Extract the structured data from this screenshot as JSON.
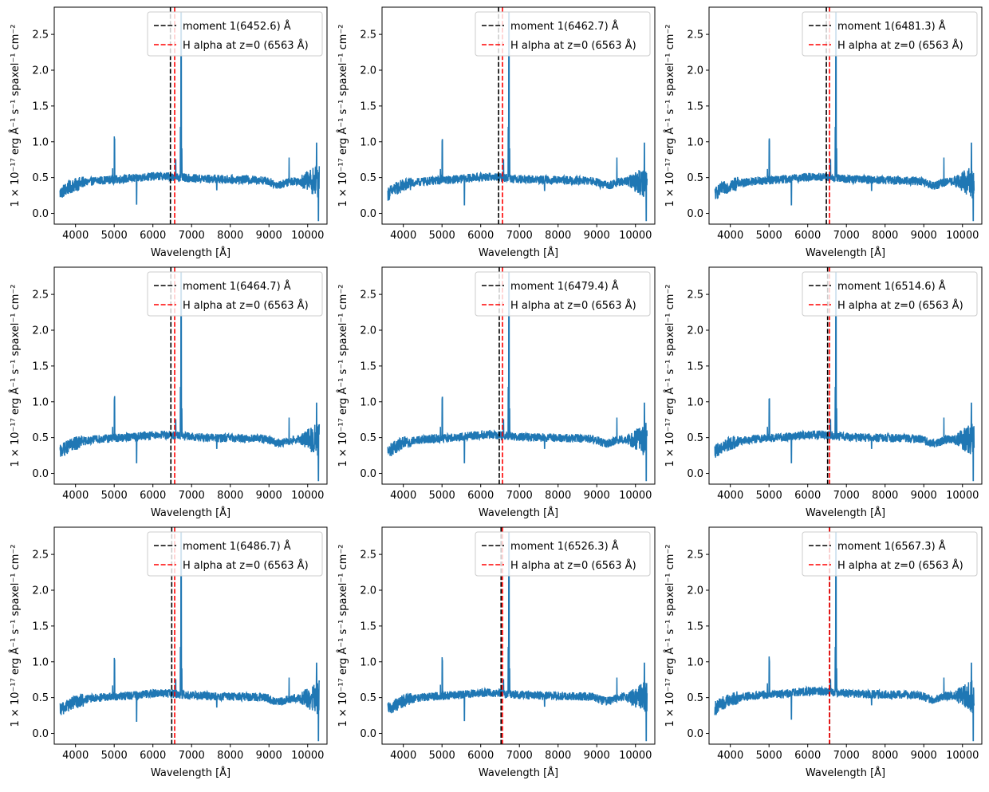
{
  "colors": {
    "spectrum": "#1f77b4",
    "moment_line": "#000000",
    "halpha_line": "#ff0000"
  },
  "chart_data": [
    {
      "type": "line",
      "moment_label": "moment 1(6452.6) Å",
      "moment_value": 6452.6,
      "halpha_label": "H alpha at z=0 (6563 Å)",
      "halpha_value": 6563,
      "xlabel": "Wavelength [Å]",
      "ylabel": "1 × 10⁻¹⁷ erg Å⁻¹ s⁻¹ spaxel⁻¹ cm⁻²",
      "xlim": [
        3450,
        10500
      ],
      "ylim": [
        -0.15,
        2.88
      ],
      "xticks": [
        4000,
        5000,
        6000,
        7000,
        8000,
        9000,
        10000
      ],
      "yticks": [
        0.0,
        0.5,
        1.0,
        1.5,
        2.0,
        2.5
      ],
      "legend_position": "top-right",
      "continuum_level": 0.48,
      "series_name": "spectrum"
    },
    {
      "type": "line",
      "moment_label": "moment 1(6462.7) Å",
      "moment_value": 6462.7,
      "halpha_label": "H alpha at z=0 (6563 Å)",
      "halpha_value": 6563,
      "xlabel": "Wavelength [Å]",
      "ylabel": "1 × 10⁻¹⁷ erg Å⁻¹ s⁻¹ spaxel⁻¹ cm⁻²",
      "xlim": [
        3450,
        10500
      ],
      "ylim": [
        -0.15,
        2.88
      ],
      "xticks": [
        4000,
        5000,
        6000,
        7000,
        8000,
        9000,
        10000
      ],
      "yticks": [
        0.0,
        0.5,
        1.0,
        1.5,
        2.0,
        2.5
      ],
      "legend_position": "top-right",
      "continuum_level": 0.47,
      "series_name": "spectrum"
    },
    {
      "type": "line",
      "moment_label": "moment 1(6481.3) Å",
      "moment_value": 6481.3,
      "halpha_label": "H alpha at z=0 (6563 Å)",
      "halpha_value": 6563,
      "xlabel": "Wavelength [Å]",
      "ylabel": "1 × 10⁻¹⁷ erg Å⁻¹ s⁻¹ spaxel⁻¹ cm⁻²",
      "xlim": [
        3450,
        10500
      ],
      "ylim": [
        -0.15,
        2.88
      ],
      "xticks": [
        4000,
        5000,
        6000,
        7000,
        8000,
        9000,
        10000
      ],
      "yticks": [
        0.0,
        0.5,
        1.0,
        1.5,
        2.0,
        2.5
      ],
      "legend_position": "top-right",
      "continuum_level": 0.47,
      "series_name": "spectrum"
    },
    {
      "type": "line",
      "moment_label": "moment 1(6464.7) Å",
      "moment_value": 6464.7,
      "halpha_label": "H alpha at z=0 (6563 Å)",
      "halpha_value": 6563,
      "xlabel": "Wavelength [Å]",
      "ylabel": "1 × 10⁻¹⁷ erg Å⁻¹ s⁻¹ spaxel⁻¹ cm⁻²",
      "xlim": [
        3450,
        10500
      ],
      "ylim": [
        -0.15,
        2.88
      ],
      "xticks": [
        4000,
        5000,
        6000,
        7000,
        8000,
        9000,
        10000
      ],
      "yticks": [
        0.0,
        0.5,
        1.0,
        1.5,
        2.0,
        2.5
      ],
      "legend_position": "top-right",
      "continuum_level": 0.5,
      "series_name": "spectrum"
    },
    {
      "type": "line",
      "moment_label": "moment 1(6479.4) Å",
      "moment_value": 6479.4,
      "halpha_label": "H alpha at z=0 (6563 Å)",
      "halpha_value": 6563,
      "xlabel": "Wavelength [Å]",
      "ylabel": "1 × 10⁻¹⁷ erg Å⁻¹ s⁻¹ spaxel⁻¹ cm⁻²",
      "xlim": [
        3450,
        10500
      ],
      "ylim": [
        -0.15,
        2.88
      ],
      "xticks": [
        4000,
        5000,
        6000,
        7000,
        8000,
        9000,
        10000
      ],
      "yticks": [
        0.0,
        0.5,
        1.0,
        1.5,
        2.0,
        2.5
      ],
      "legend_position": "top-right",
      "continuum_level": 0.5,
      "series_name": "spectrum"
    },
    {
      "type": "line",
      "moment_label": "moment 1(6514.6) Å",
      "moment_value": 6514.6,
      "halpha_label": "H alpha at z=0 (6563 Å)",
      "halpha_value": 6563,
      "xlabel": "Wavelength [Å]",
      "ylabel": "1 × 10⁻¹⁷ erg Å⁻¹ s⁻¹ spaxel⁻¹ cm⁻²",
      "xlim": [
        3450,
        10500
      ],
      "ylim": [
        -0.15,
        2.88
      ],
      "xticks": [
        4000,
        5000,
        6000,
        7000,
        8000,
        9000,
        10000
      ],
      "yticks": [
        0.0,
        0.5,
        1.0,
        1.5,
        2.0,
        2.5
      ],
      "legend_position": "top-right",
      "continuum_level": 0.5,
      "series_name": "spectrum"
    },
    {
      "type": "line",
      "moment_label": "moment 1(6486.7) Å",
      "moment_value": 6486.7,
      "halpha_label": "H alpha at z=0 (6563 Å)",
      "halpha_value": 6563,
      "xlabel": "Wavelength [Å]",
      "ylabel": "1 × 10⁻¹⁷ erg Å⁻¹ s⁻¹ spaxel⁻¹ cm⁻²",
      "xlim": [
        3450,
        10500
      ],
      "ylim": [
        -0.15,
        2.88
      ],
      "xticks": [
        4000,
        5000,
        6000,
        7000,
        8000,
        9000,
        10000
      ],
      "yticks": [
        0.0,
        0.5,
        1.0,
        1.5,
        2.0,
        2.5
      ],
      "legend_position": "top-right",
      "continuum_level": 0.52,
      "series_name": "spectrum"
    },
    {
      "type": "line",
      "moment_label": "moment 1(6526.3) Å",
      "moment_value": 6526.3,
      "halpha_label": "H alpha at z=0 (6563 Å)",
      "halpha_value": 6563,
      "xlabel": "Wavelength [Å]",
      "ylabel": "1 × 10⁻¹⁷ erg Å⁻¹ s⁻¹ spaxel⁻¹ cm⁻²",
      "xlim": [
        3450,
        10500
      ],
      "ylim": [
        -0.15,
        2.88
      ],
      "xticks": [
        4000,
        5000,
        6000,
        7000,
        8000,
        9000,
        10000
      ],
      "yticks": [
        0.0,
        0.5,
        1.0,
        1.5,
        2.0,
        2.5
      ],
      "legend_position": "top-right",
      "continuum_level": 0.53,
      "series_name": "spectrum"
    },
    {
      "type": "line",
      "moment_label": "moment 1(6567.3) Å",
      "moment_value": 6567.3,
      "halpha_label": "H alpha at z=0 (6563 Å)",
      "halpha_value": 6563,
      "xlabel": "Wavelength [Å]",
      "ylabel": "1 × 10⁻¹⁷ erg Å⁻¹ s⁻¹ spaxel⁻¹ cm⁻²",
      "xlim": [
        3450,
        10500
      ],
      "ylim": [
        -0.15,
        2.88
      ],
      "xticks": [
        4000,
        5000,
        6000,
        7000,
        8000,
        9000,
        10000
      ],
      "yticks": [
        0.0,
        0.5,
        1.0,
        1.5,
        2.0,
        2.5
      ],
      "legend_position": "top-right",
      "continuum_level": 0.55,
      "series_name": "spectrum"
    }
  ]
}
